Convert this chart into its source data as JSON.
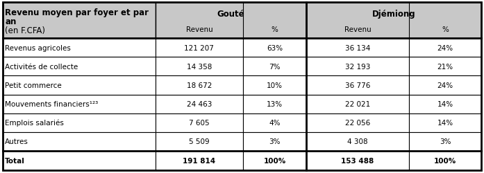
{
  "header_col0_line1": "Revenu moyen par foyer et par",
  "header_col0_line2": "an",
  "header_col0_line3": "(en F.CFA)",
  "header_goute": "Gouté",
  "header_djemiong": "Djémiong",
  "subheader_revenu": "Revenu",
  "subheader_pct": "%",
  "rows": [
    [
      "Revenus agricoles",
      "121 207",
      "63%",
      "36 134",
      "24%"
    ],
    [
      "Activités de collecte",
      "14 358",
      "7%",
      "32 193",
      "21%"
    ],
    [
      "Petit commerce",
      "18 672",
      "10%",
      "36 776",
      "24%"
    ],
    [
      "Mouvements financiers¹²³",
      "24 463",
      "13%",
      "22 021",
      "14%"
    ],
    [
      "Emplois salariés",
      "7 605",
      "4%",
      "22 056",
      "14%"
    ],
    [
      "Autres",
      "5 509",
      "3%",
      "4 308",
      "3%"
    ]
  ],
  "total_row": [
    "Total",
    "191 814",
    "100%",
    "153 488",
    "100%"
  ],
  "background_color": "#ffffff",
  "border_color": "#000000",
  "header_bg": "#c8c8c8",
  "text_color": "#000000",
  "fontsize": 7.5,
  "header_fontsize": 8.5
}
